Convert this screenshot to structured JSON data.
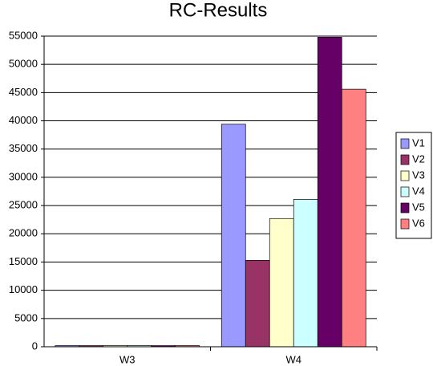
{
  "chart_data": {
    "type": "bar",
    "title": "RC-Results",
    "categories": [
      "W3",
      "W4"
    ],
    "series": [
      {
        "name": "V1",
        "color": "#9999ff",
        "values": [
          200,
          39400
        ]
      },
      {
        "name": "V2",
        "color": "#993366",
        "values": [
          200,
          15300
        ]
      },
      {
        "name": "V3",
        "color": "#ffffcc",
        "values": [
          200,
          22700
        ]
      },
      {
        "name": "V4",
        "color": "#ccffff",
        "values": [
          200,
          26100
        ]
      },
      {
        "name": "V5",
        "color": "#660066",
        "values": [
          200,
          54800
        ]
      },
      {
        "name": "V6",
        "color": "#ff8080",
        "values": [
          200,
          45600
        ]
      }
    ],
    "ylim": [
      0,
      55000
    ],
    "yticks": [
      0,
      5000,
      10000,
      15000,
      20000,
      25000,
      30000,
      35000,
      40000,
      45000,
      50000,
      55000
    ],
    "grid": true,
    "legend": "right"
  }
}
